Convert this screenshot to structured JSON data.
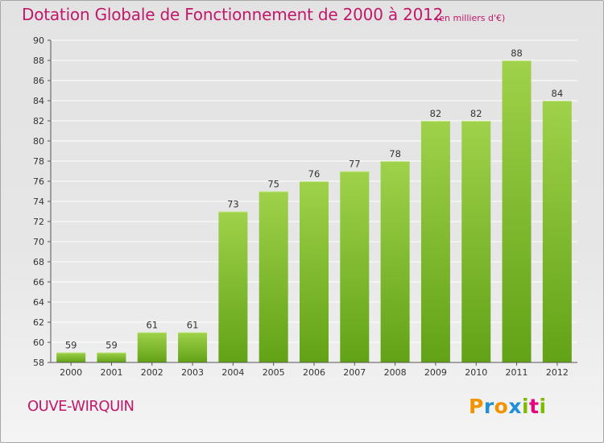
{
  "header": {
    "title": "Dotation Globale de Fonctionnement de 2000 à 2012",
    "subtitle": "(en milliers d'€)"
  },
  "footer": {
    "place": "OUVE-WIRQUIN",
    "logo": "Proxiti"
  },
  "colors": {
    "title": "#c0186a",
    "bar_top": "#9fd24a",
    "bar_bottom": "#62a216",
    "gridline": "#ffffff",
    "logo_letters": [
      "#f29400",
      "#1f8fd6",
      "#f29400",
      "#1f8fd6",
      "#7fba00",
      "#e6007e",
      "#7fba00"
    ]
  },
  "chart_data": {
    "type": "bar",
    "title": "Dotation Globale de Fonctionnement de 2000 à 2012",
    "subtitle": "(en milliers d'€)",
    "xlabel": "",
    "ylabel": "",
    "categories": [
      "2000",
      "2001",
      "2002",
      "2003",
      "2004",
      "2005",
      "2006",
      "2007",
      "2008",
      "2009",
      "2010",
      "2011",
      "2012"
    ],
    "values": [
      59,
      59,
      61,
      61,
      73,
      75,
      76,
      77,
      78,
      82,
      82,
      88,
      84
    ],
    "data_labels": [
      "59",
      "59",
      "61",
      "61",
      "73",
      "75",
      "76",
      "77",
      "78",
      "82",
      "82",
      "88",
      "84"
    ],
    "ylim": [
      58,
      90
    ],
    "yticks": [
      58,
      60,
      62,
      64,
      66,
      68,
      70,
      72,
      74,
      76,
      78,
      80,
      82,
      84,
      86,
      88,
      90
    ],
    "grid": true,
    "legend": "none"
  }
}
